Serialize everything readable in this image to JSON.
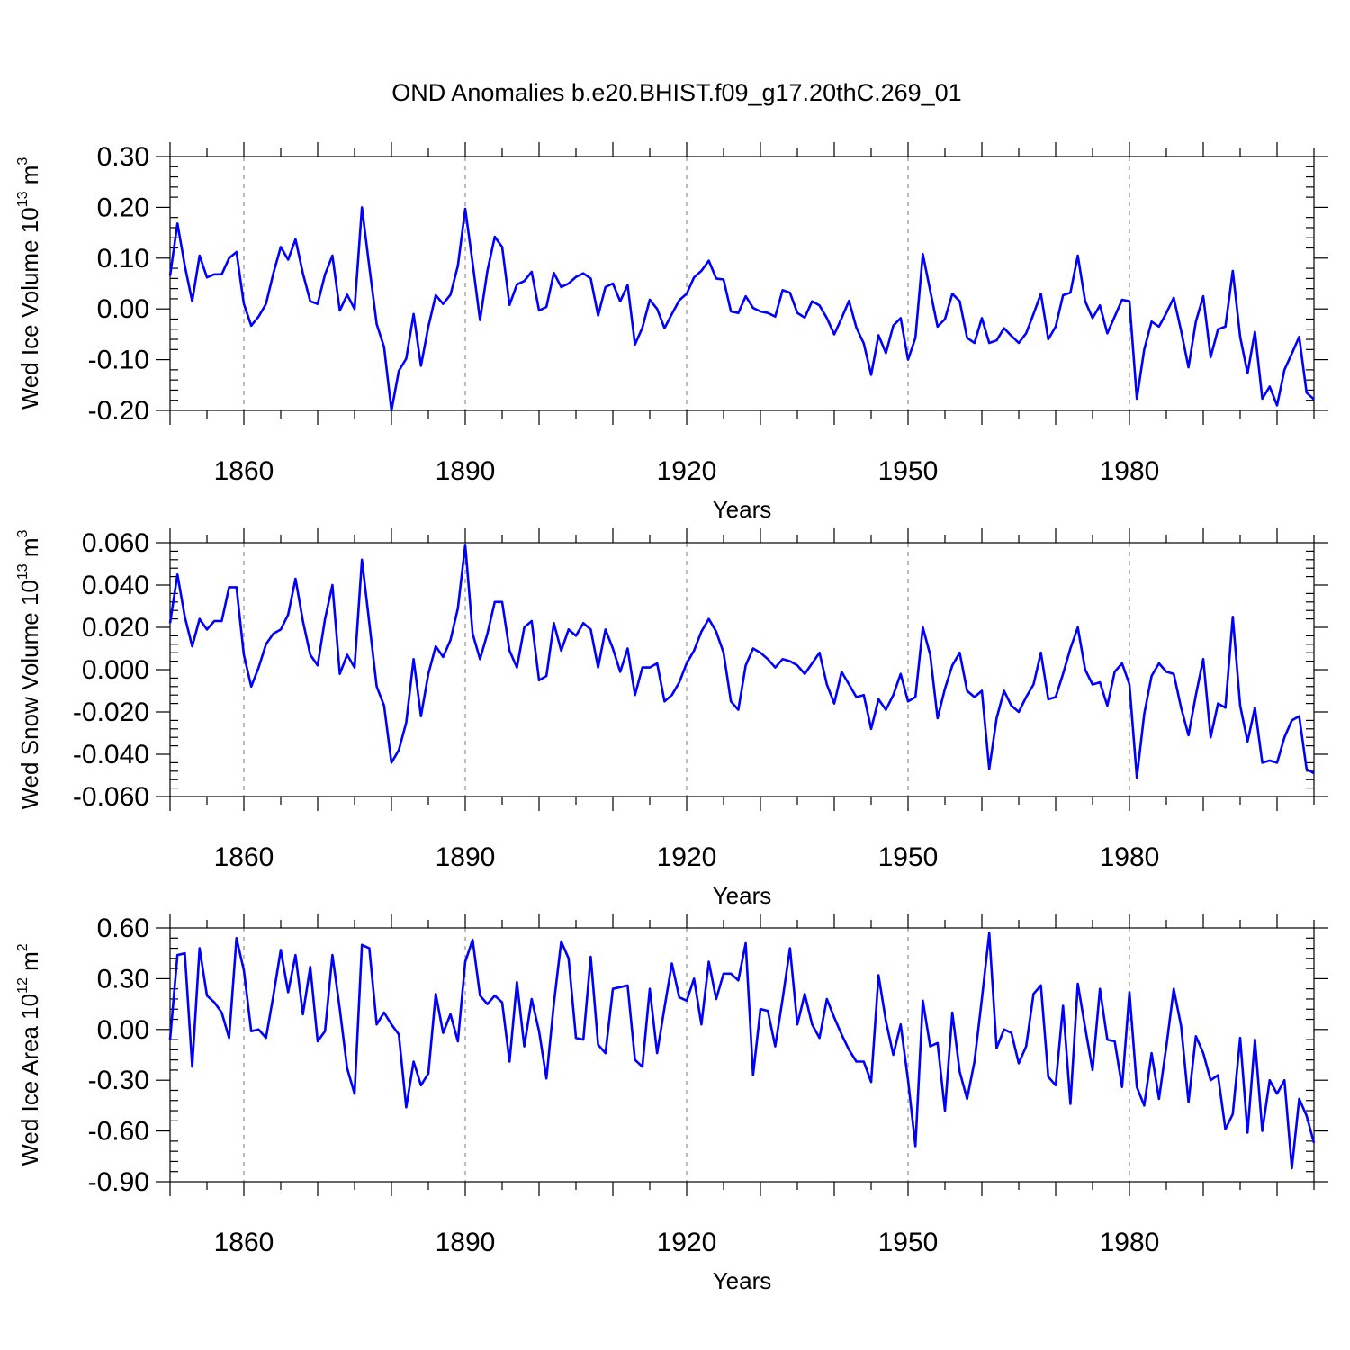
{
  "title": "OND Anomalies b.e20.BHIST.f09_g17.20thC.269_01",
  "colors": {
    "series": "#0000ff",
    "axis": "#000000",
    "grid": "#777777"
  },
  "chart_data": [
    {
      "type": "line",
      "name": "ice-volume",
      "ylabel_prefix": "Wed Ice Volume 10",
      "ylabel_exp": "13",
      "ylabel_unit": " m",
      "ylabel_unit_exp": "3",
      "xlabel": "Years",
      "xlim": [
        1850,
        2005
      ],
      "ylim": [
        -0.2,
        0.3
      ],
      "yticks": [
        -0.2,
        -0.1,
        0.0,
        0.1,
        0.2,
        0.3
      ],
      "ytick_labels": [
        "-0.20",
        "-0.10",
        "0.00",
        "0.10",
        "0.20",
        "0.30"
      ],
      "xticks": [
        1860,
        1890,
        1920,
        1950,
        1980
      ],
      "xtick_labels": [
        "1860",
        "1890",
        "1920",
        "1950",
        "1980"
      ],
      "x_start": 1850,
      "values": [
        0.065,
        0.168,
        0.085,
        0.015,
        0.105,
        0.062,
        0.068,
        0.068,
        0.1,
        0.112,
        0.01,
        -0.033,
        -0.015,
        0.01,
        0.07,
        0.122,
        0.097,
        0.137,
        0.07,
        0.015,
        0.01,
        0.068,
        0.105,
        -0.003,
        0.028,
        0.0,
        0.2,
        0.083,
        -0.03,
        -0.075,
        -0.2,
        -0.122,
        -0.098,
        -0.01,
        -0.112,
        -0.035,
        0.027,
        0.01,
        0.028,
        0.085,
        0.197,
        0.09,
        -0.022,
        0.075,
        0.142,
        0.122,
        0.008,
        0.048,
        0.055,
        0.073,
        -0.003,
        0.004,
        0.071,
        0.043,
        0.05,
        0.063,
        0.07,
        0.06,
        -0.013,
        0.043,
        0.05,
        0.015,
        0.047,
        -0.07,
        -0.037,
        0.018,
        0.0,
        -0.038,
        -0.01,
        0.017,
        0.03,
        0.062,
        0.075,
        0.095,
        0.06,
        0.058,
        -0.005,
        -0.008,
        0.025,
        0.002,
        -0.005,
        -0.008,
        -0.015,
        0.037,
        0.032,
        -0.008,
        -0.017,
        0.015,
        0.007,
        -0.018,
        -0.05,
        -0.018,
        0.016,
        -0.037,
        -0.068,
        -0.13,
        -0.052,
        -0.087,
        -0.033,
        -0.018,
        -0.1,
        -0.057,
        0.108,
        0.036,
        -0.035,
        -0.02,
        0.03,
        0.015,
        -0.057,
        -0.067,
        -0.018,
        -0.067,
        -0.062,
        -0.038,
        -0.053,
        -0.067,
        -0.048,
        -0.01,
        0.03,
        -0.06,
        -0.035,
        0.027,
        0.032,
        0.105,
        0.015,
        -0.018,
        0.007,
        -0.048,
        -0.015,
        0.018,
        0.015,
        -0.177,
        -0.08,
        -0.025,
        -0.035,
        -0.008,
        0.022,
        -0.043,
        -0.115,
        -0.025,
        0.025,
        -0.095,
        -0.04,
        -0.035,
        0.075,
        -0.055,
        -0.127,
        -0.045,
        -0.177,
        -0.153,
        -0.19,
        -0.12,
        -0.088,
        -0.055,
        -0.165,
        -0.178
      ]
    },
    {
      "type": "line",
      "name": "snow-volume",
      "ylabel_prefix": "Wed Snow Volume 10",
      "ylabel_exp": "13",
      "ylabel_unit": " m",
      "ylabel_unit_exp": "3",
      "xlabel": "Years",
      "xlim": [
        1850,
        2005
      ],
      "ylim": [
        -0.06,
        0.06
      ],
      "yticks": [
        -0.06,
        -0.04,
        -0.02,
        0.0,
        0.02,
        0.04,
        0.06
      ],
      "ytick_labels": [
        "-0.060",
        "-0.040",
        "-0.020",
        "0.000",
        "0.020",
        "0.040",
        "0.060"
      ],
      "xticks": [
        1860,
        1890,
        1920,
        1950,
        1980
      ],
      "xtick_labels": [
        "1860",
        "1890",
        "1920",
        "1950",
        "1980"
      ],
      "x_start": 1850,
      "values": [
        0.022,
        0.045,
        0.025,
        0.011,
        0.024,
        0.019,
        0.023,
        0.023,
        0.039,
        0.039,
        0.007,
        -0.008,
        0.001,
        0.012,
        0.017,
        0.019,
        0.026,
        0.043,
        0.023,
        0.007,
        0.002,
        0.024,
        0.04,
        -0.002,
        0.007,
        0.001,
        0.052,
        0.022,
        -0.008,
        -0.017,
        -0.044,
        -0.038,
        -0.025,
        0.005,
        -0.022,
        -0.002,
        0.011,
        0.006,
        0.014,
        0.029,
        0.059,
        0.017,
        0.005,
        0.017,
        0.032,
        0.032,
        0.009,
        0.001,
        0.02,
        0.023,
        -0.005,
        -0.003,
        0.022,
        0.009,
        0.019,
        0.016,
        0.022,
        0.019,
        0.001,
        0.019,
        0.01,
        -0.001,
        0.01,
        -0.012,
        0.001,
        0.001,
        0.003,
        -0.015,
        -0.012,
        -0.006,
        0.003,
        0.009,
        0.018,
        0.024,
        0.018,
        0.008,
        -0.015,
        -0.019,
        0.002,
        0.01,
        0.008,
        0.005,
        0.001,
        0.005,
        0.004,
        0.002,
        -0.002,
        0.003,
        0.008,
        -0.007,
        -0.016,
        -0.001,
        -0.007,
        -0.013,
        -0.012,
        -0.028,
        -0.014,
        -0.019,
        -0.012,
        -0.002,
        -0.015,
        -0.013,
        0.02,
        0.007,
        -0.023,
        -0.009,
        0.002,
        0.008,
        -0.01,
        -0.013,
        -0.01,
        -0.047,
        -0.023,
        -0.01,
        -0.017,
        -0.02,
        -0.013,
        -0.007,
        0.008,
        -0.014,
        -0.013,
        -0.002,
        0.01,
        0.02,
        0.0,
        -0.007,
        -0.006,
        -0.017,
        -0.001,
        0.003,
        -0.007,
        -0.051,
        -0.021,
        -0.003,
        0.003,
        -0.001,
        -0.002,
        -0.018,
        -0.031,
        -0.012,
        0.005,
        -0.032,
        -0.016,
        -0.018,
        0.025,
        -0.017,
        -0.034,
        -0.018,
        -0.044,
        -0.043,
        -0.044,
        -0.032,
        -0.024,
        -0.022,
        -0.047,
        -0.049
      ]
    },
    {
      "type": "line",
      "name": "ice-area",
      "ylabel_prefix": "Wed Ice Area 10",
      "ylabel_exp": "12",
      "ylabel_unit": " m",
      "ylabel_unit_exp": "2",
      "xlabel": "Years",
      "xlim": [
        1850,
        2005
      ],
      "ylim": [
        -0.9,
        0.6
      ],
      "yticks": [
        -0.9,
        -0.6,
        -0.3,
        0.0,
        0.3,
        0.6
      ],
      "ytick_labels": [
        "-0.90",
        "-0.60",
        "-0.30",
        "0.00",
        "0.30",
        "0.60"
      ],
      "xticks": [
        1860,
        1890,
        1920,
        1950,
        1980
      ],
      "xtick_labels": [
        "1860",
        "1890",
        "1920",
        "1950",
        "1980"
      ],
      "x_start": 1850,
      "values": [
        -0.06,
        0.44,
        0.45,
        -0.22,
        0.48,
        0.2,
        0.16,
        0.1,
        -0.05,
        0.54,
        0.35,
        -0.01,
        0.0,
        -0.05,
        0.2,
        0.47,
        0.22,
        0.44,
        0.09,
        0.37,
        -0.07,
        -0.01,
        0.44,
        0.12,
        -0.23,
        -0.38,
        0.5,
        0.48,
        0.03,
        0.1,
        0.03,
        -0.03,
        -0.46,
        -0.19,
        -0.33,
        -0.26,
        0.21,
        -0.02,
        0.09,
        -0.07,
        0.4,
        0.53,
        0.2,
        0.15,
        0.2,
        0.16,
        -0.19,
        0.28,
        -0.1,
        0.18,
        -0.01,
        -0.29,
        0.15,
        0.52,
        0.42,
        -0.05,
        -0.06,
        0.43,
        -0.09,
        -0.14,
        0.24,
        0.25,
        0.26,
        -0.18,
        -0.22,
        0.24,
        -0.14,
        0.13,
        0.39,
        0.19,
        0.17,
        0.3,
        0.03,
        0.4,
        0.18,
        0.33,
        0.33,
        0.29,
        0.51,
        -0.27,
        0.12,
        0.11,
        -0.1,
        0.18,
        0.48,
        0.03,
        0.21,
        0.03,
        -0.05,
        0.18,
        0.07,
        -0.03,
        -0.12,
        -0.19,
        -0.19,
        -0.31,
        0.32,
        0.05,
        -0.15,
        0.03,
        -0.3,
        -0.69,
        0.17,
        -0.1,
        -0.08,
        -0.48,
        0.1,
        -0.25,
        -0.41,
        -0.19,
        0.18,
        0.57,
        -0.11,
        0.0,
        -0.02,
        -0.2,
        -0.1,
        0.21,
        0.26,
        -0.28,
        -0.33,
        0.14,
        -0.44,
        0.27,
        0.01,
        -0.24,
        0.24,
        -0.06,
        -0.07,
        -0.34,
        0.22,
        -0.34,
        -0.45,
        -0.14,
        -0.41,
        -0.1,
        0.24,
        0.02,
        -0.43,
        -0.04,
        -0.14,
        -0.3,
        -0.27,
        -0.59,
        -0.5,
        -0.05,
        -0.61,
        -0.06,
        -0.6,
        -0.3,
        -0.38,
        -0.3,
        -0.82,
        -0.41,
        -0.51,
        -0.67
      ]
    }
  ]
}
